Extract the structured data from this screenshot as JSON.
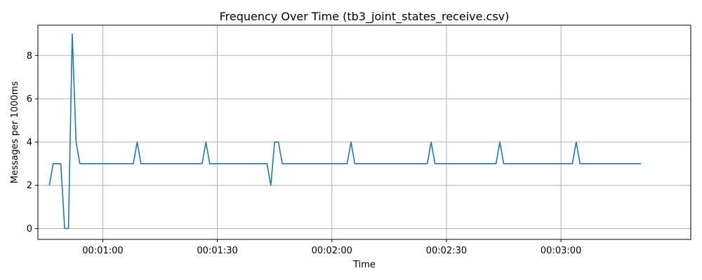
{
  "chart_data": {
    "type": "line",
    "title": "Frequency Over Time (tb3_joint_states_receive.csv)",
    "xlabel": "Time",
    "ylabel": "Messages per 1000ms",
    "x_ticks": [
      "00:01:00",
      "00:01:30",
      "00:02:00",
      "00:02:30",
      "00:03:00"
    ],
    "y_ticks": [
      "0",
      "2",
      "4",
      "6",
      "8"
    ],
    "xlim": [
      "00:00:43",
      "00:03:34"
    ],
    "ylim": [
      -0.5,
      9.4
    ],
    "grid": true,
    "series": [
      {
        "color": "#1f77b4",
        "points": [
          [
            "00:00:46",
            2
          ],
          [
            "00:00:47",
            3
          ],
          [
            "00:00:48",
            3
          ],
          [
            "00:00:49",
            3
          ],
          [
            "00:00:50",
            0
          ],
          [
            "00:00:51",
            0
          ],
          [
            "00:00:52",
            9
          ],
          [
            "00:00:53",
            4
          ],
          [
            "00:00:54",
            3
          ],
          [
            "00:01:08",
            3
          ],
          [
            "00:01:09",
            4
          ],
          [
            "00:01:10",
            3
          ],
          [
            "00:01:26",
            3
          ],
          [
            "00:01:27",
            4
          ],
          [
            "00:01:28",
            3
          ],
          [
            "00:01:43",
            3
          ],
          [
            "00:01:44",
            2
          ],
          [
            "00:01:45",
            4
          ],
          [
            "00:01:46",
            4
          ],
          [
            "00:01:47",
            3
          ],
          [
            "00:02:04",
            3
          ],
          [
            "00:02:05",
            4
          ],
          [
            "00:02:06",
            3
          ],
          [
            "00:02:25",
            3
          ],
          [
            "00:02:26",
            4
          ],
          [
            "00:02:27",
            3
          ],
          [
            "00:02:43",
            3
          ],
          [
            "00:02:44",
            4
          ],
          [
            "00:02:45",
            3
          ],
          [
            "00:03:03",
            3
          ],
          [
            "00:03:04",
            4
          ],
          [
            "00:03:05",
            3
          ],
          [
            "00:03:21",
            3
          ]
        ]
      }
    ]
  }
}
